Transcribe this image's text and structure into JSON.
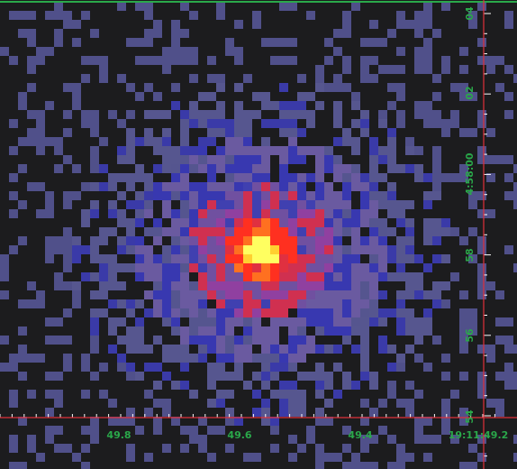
{
  "x_axis": {
    "labels": [
      "49.8",
      "49.6",
      "49.4",
      "19:11:49.2"
    ]
  },
  "y_axis": {
    "labels": [
      "04",
      "02",
      "4:58:00",
      "58",
      "56",
      "54"
    ]
  }
}
